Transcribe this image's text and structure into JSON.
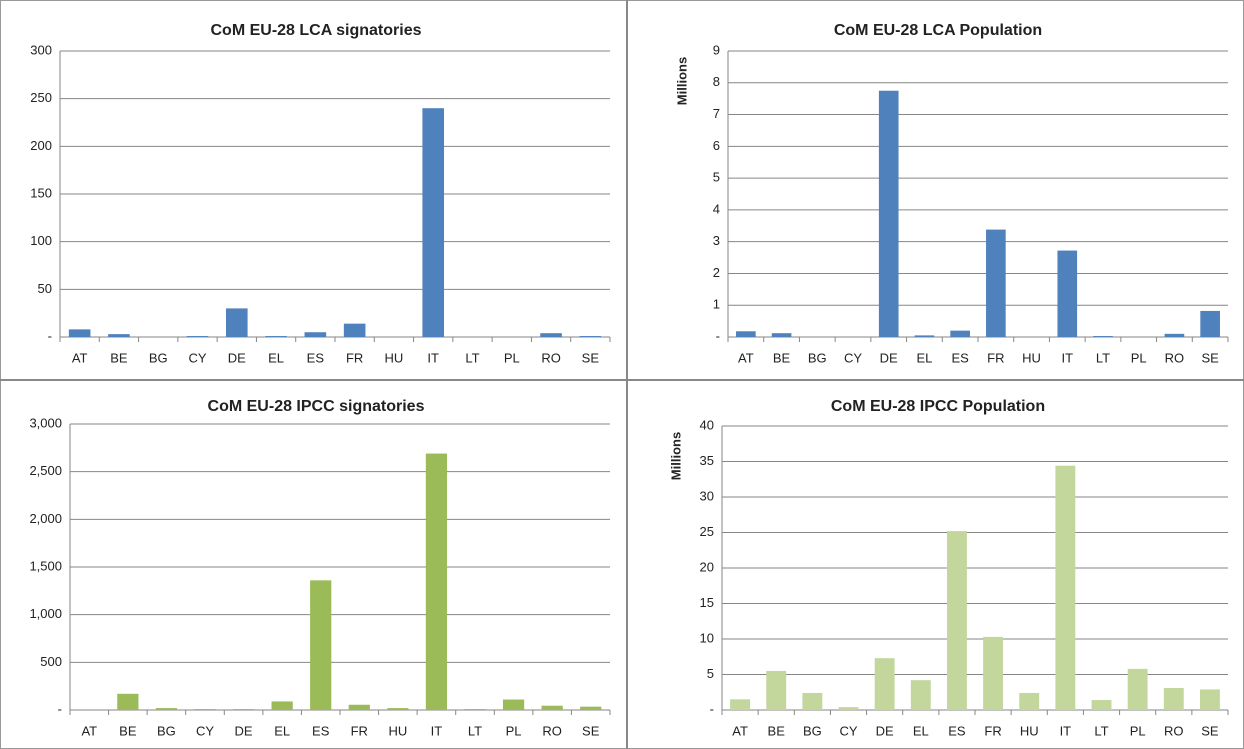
{
  "chart_data": [
    {
      "type": "bar",
      "title": "CoM EU-28 LCA signatories",
      "color": "#4f81bd",
      "grid": true,
      "categories": [
        "AT",
        "BE",
        "BG",
        "CY",
        "DE",
        "EL",
        "ES",
        "FR",
        "HU",
        "IT",
        "LT",
        "PL",
        "RO",
        "SE"
      ],
      "values": [
        8,
        3,
        0,
        1,
        30,
        1,
        5,
        14,
        0,
        240,
        0,
        0,
        4,
        1
      ],
      "ylim": [
        0,
        300
      ],
      "yticks": [
        {
          "value": 0,
          "label": "-"
        },
        50,
        100,
        150,
        200,
        250,
        300
      ]
    },
    {
      "type": "bar",
      "title": "CoM EU-28 LCA Population",
      "y_label": "Millions",
      "color": "#4f81bd",
      "grid": true,
      "categories": [
        "AT",
        "BE",
        "BG",
        "CY",
        "DE",
        "EL",
        "ES",
        "FR",
        "HU",
        "IT",
        "LT",
        "PL",
        "RO",
        "SE"
      ],
      "values": [
        0.18,
        0.12,
        0,
        0,
        7.75,
        0.05,
        0.2,
        3.38,
        0,
        2.72,
        0.03,
        0,
        0.1,
        0.82
      ],
      "ylim": [
        0,
        9
      ],
      "yticks": [
        {
          "value": 0,
          "label": "-"
        },
        1,
        2,
        3,
        4,
        5,
        6,
        7,
        8,
        9
      ]
    },
    {
      "type": "bar",
      "title": "CoM EU-28 IPCC signatories",
      "color": "#9bbb59",
      "grid": true,
      "categories": [
        "AT",
        "BE",
        "BG",
        "CY",
        "DE",
        "EL",
        "ES",
        "FR",
        "HU",
        "IT",
        "LT",
        "PL",
        "RO",
        "SE"
      ],
      "values": [
        0,
        170,
        20,
        10,
        10,
        90,
        1360,
        55,
        20,
        2690,
        10,
        110,
        45,
        35
      ],
      "ylim": [
        0,
        3000
      ],
      "yticks": [
        {
          "value": 0,
          "label": "-"
        },
        500,
        {
          "value": 1000,
          "label": "1,000"
        },
        {
          "value": 1500,
          "label": "1,500"
        },
        {
          "value": 2000,
          "label": "2,000"
        },
        {
          "value": 2500,
          "label": "2,500"
        },
        {
          "value": 3000,
          "label": "3,000"
        }
      ]
    },
    {
      "type": "bar",
      "title": "CoM EU-28 IPCC Population",
      "y_label": "Millions",
      "color": "#c3d69b",
      "grid": true,
      "categories": [
        "AT",
        "BE",
        "BG",
        "CY",
        "DE",
        "EL",
        "ES",
        "FR",
        "HU",
        "IT",
        "LT",
        "PL",
        "RO",
        "SE"
      ],
      "values": [
        1.5,
        5.5,
        2.4,
        0.4,
        7.3,
        4.2,
        25.2,
        10.3,
        2.4,
        34.4,
        1.4,
        5.8,
        3.1,
        2.9
      ],
      "ylim": [
        0,
        40
      ],
      "yticks": [
        {
          "value": 0,
          "label": "-"
        },
        5,
        10,
        15,
        20,
        25,
        30,
        35,
        40
      ]
    }
  ]
}
